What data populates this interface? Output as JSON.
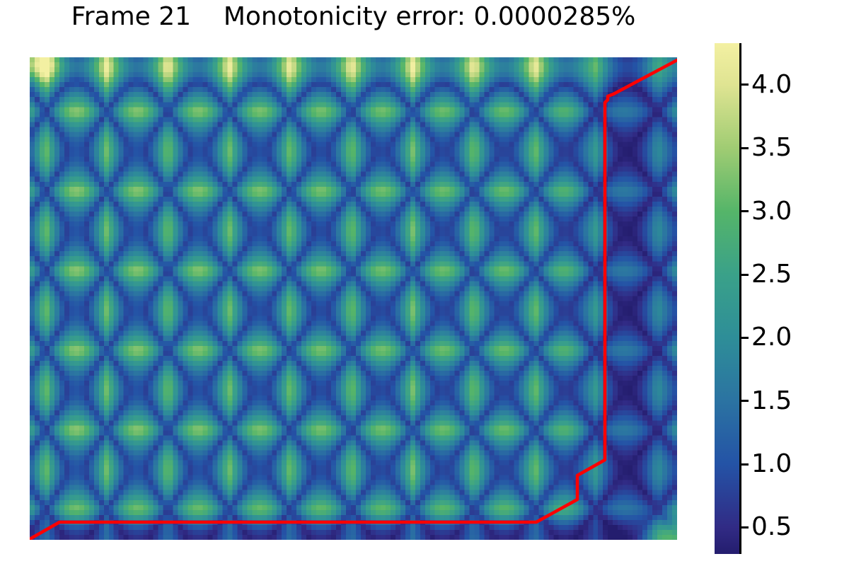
{
  "figure": {
    "background_color": "#ffffff"
  },
  "chart_data": {
    "type": "heatmap",
    "title": "Frame 21    Monotonicity error: 0.0000285%",
    "frame": 21,
    "monotonicity_error": "0.0000285%",
    "description": "Pairwise cost matrix between two periodic signals with a red monotonic alignment (warping) path overlaid; no axis ticks or labels; colorbar on the right.",
    "xlabel": "",
    "ylabel": "",
    "value_range": {
      "vmin": 0.29,
      "vmax": 4.33
    },
    "grid": {
      "cols": 131,
      "rows": 97
    },
    "colorbar": {
      "position": "right",
      "ticks": [
        {
          "label": "4.0",
          "value": 4.0
        },
        {
          "label": "3.5",
          "value": 3.5
        },
        {
          "label": "3.0",
          "value": 3.0
        },
        {
          "label": "2.5",
          "value": 2.5
        },
        {
          "label": "2.0",
          "value": 2.0
        },
        {
          "label": "1.5",
          "value": 1.5
        },
        {
          "label": "1.0",
          "value": 1.0
        },
        {
          "label": "0.5",
          "value": 0.5
        }
      ]
    },
    "colormap_stops": [
      [
        0.29,
        "#241d6e"
      ],
      [
        0.5,
        "#312b85"
      ],
      [
        1.0,
        "#2453a6"
      ],
      [
        1.5,
        "#2b73a2"
      ],
      [
        2.0,
        "#2e8e98"
      ],
      [
        2.5,
        "#3aa189"
      ],
      [
        3.0,
        "#55b569"
      ],
      [
        3.5,
        "#a0cc73"
      ],
      [
        4.0,
        "#dfe492"
      ],
      [
        4.33,
        "#f3f0a2"
      ]
    ],
    "pattern_model": {
      "comment": "value(u,v) = floor + amp*|sx*ax - sy*ay| + corner boosts; sx,sy are |sin| signals; u=col fraction, v=row fraction from top",
      "fx": 10.5,
      "phx": 0.78,
      "fy": 6.0,
      "phy": 0.35,
      "left_boost": 0.12,
      "top_boost": 0.5,
      "top_sigma": 0.05,
      "band_center": 0.935,
      "band_sigma": 0.075,
      "band_damp": 0.45,
      "band_floor_drop": 0.45,
      "bottom_sigma": 0.04,
      "bottom_damp": 0.5,
      "bottom_floor_drop": 0.4,
      "amp": 2.5,
      "floor": 0.75,
      "corner_boost": 2.6,
      "corner_sigma_x": 0.05,
      "corner_sigma_y": 0.04,
      "tl_boost": 1.2,
      "tl_sigma": 0.04
    },
    "overlay_path": {
      "name": "alignment-path",
      "color": "#ff0000",
      "width": 4.5,
      "points_frac": [
        [
          0.0,
          0.9985
        ],
        [
          0.046,
          0.9633
        ],
        [
          0.7825,
          0.9633
        ],
        [
          0.8459,
          0.9164
        ],
        [
          0.8459,
          0.8666
        ],
        [
          0.8885,
          0.8343
        ],
        [
          0.8885,
          0.0938
        ],
        [
          0.8929,
          0.088
        ],
        [
          0.8929,
          0.0806
        ],
        [
          0.9016,
          0.0762
        ],
        [
          1.0,
          0.0059
        ]
      ]
    }
  }
}
